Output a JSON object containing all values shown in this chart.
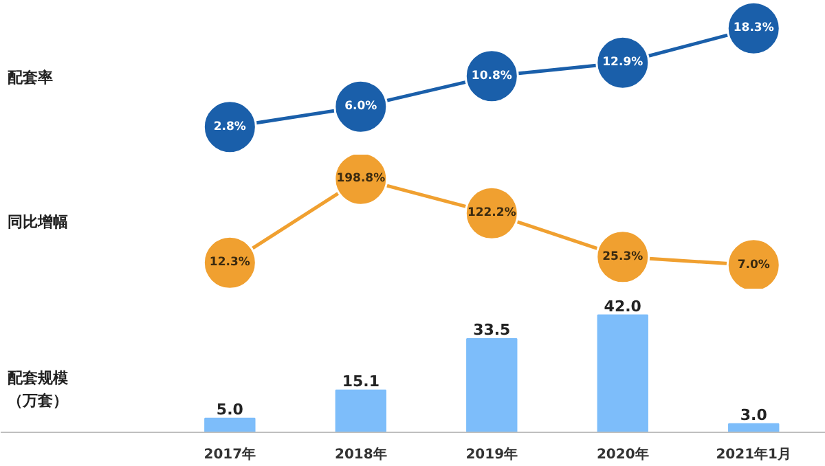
{
  "chart_data": [
    {
      "type": "line",
      "ylabel": "配套率",
      "marker": "circle",
      "tick_labels": false,
      "series": [
        {
          "color": "#1a5faa",
          "values": [
            2.8,
            6.0,
            10.8,
            12.9,
            18.3
          ],
          "value_labels": [
            "2.8%",
            "6.0%",
            "10.8%",
            "12.9%",
            "18.3%"
          ]
        }
      ]
    },
    {
      "type": "line",
      "ylabel": "同比增幅",
      "marker": "circle",
      "tick_labels": false,
      "series": [
        {
          "color": "#f0a030",
          "values": [
            12.3,
            198.8,
            122.2,
            25.3,
            7.0
          ],
          "value_labels": [
            "12.3%",
            "198.8%",
            "122.2%",
            "25.3%",
            "7.0%"
          ]
        }
      ]
    },
    {
      "type": "bar",
      "ylabel": "配套规模（万套）",
      "categories": [
        "2017年",
        "2018年",
        "2019年",
        "2020年",
        "2021年1月"
      ],
      "tick_labels": "x",
      "series": [
        {
          "color": "#7dbdfa",
          "values": [
            5.0,
            15.1,
            33.5,
            42.0,
            3.0
          ],
          "value_labels": [
            "5.0",
            "15.1",
            "33.5",
            "42.0",
            "3.0"
          ]
        }
      ]
    }
  ]
}
